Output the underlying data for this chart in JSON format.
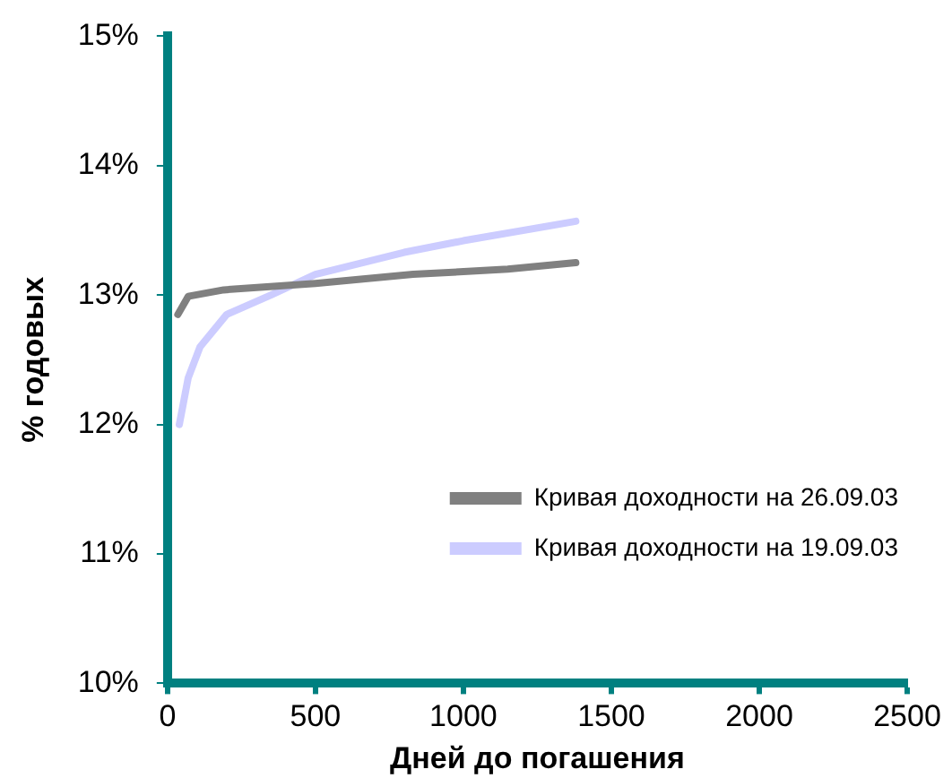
{
  "chart_data": {
    "type": "line",
    "xlabel": "Дней до погашения",
    "ylabel": "% годовых",
    "xlim": [
      0,
      2500
    ],
    "xticks": [
      0,
      500,
      1000,
      1500,
      2000,
      2500
    ],
    "ylim": [
      10,
      15
    ],
    "yticks": [
      {
        "value": 10,
        "label": "10%"
      },
      {
        "value": 11,
        "label": "11%"
      },
      {
        "value": 12,
        "label": "12%"
      },
      {
        "value": 13,
        "label": "13%"
      },
      {
        "value": 14,
        "label": "14%"
      },
      {
        "value": 15,
        "label": "15%"
      }
    ],
    "grid": false,
    "legend": "bottom right",
    "marker": "none",
    "series": [
      {
        "name": "Кривая доходности на 26.09.03",
        "color": "#808080",
        "x": [
          35,
          70,
          190,
          500,
          830,
          1150,
          1380
        ],
        "values": [
          12.85,
          12.99,
          13.04,
          13.09,
          13.16,
          13.2,
          13.25
        ]
      },
      {
        "name": "Кривая доходности на 19.09.03",
        "color": "#ccccff",
        "x": [
          40,
          70,
          110,
          200,
          350,
          500,
          800,
          1000,
          1380
        ],
        "values": [
          12.0,
          12.36,
          12.6,
          12.85,
          13.0,
          13.16,
          13.33,
          13.42,
          13.57
        ]
      }
    ]
  }
}
